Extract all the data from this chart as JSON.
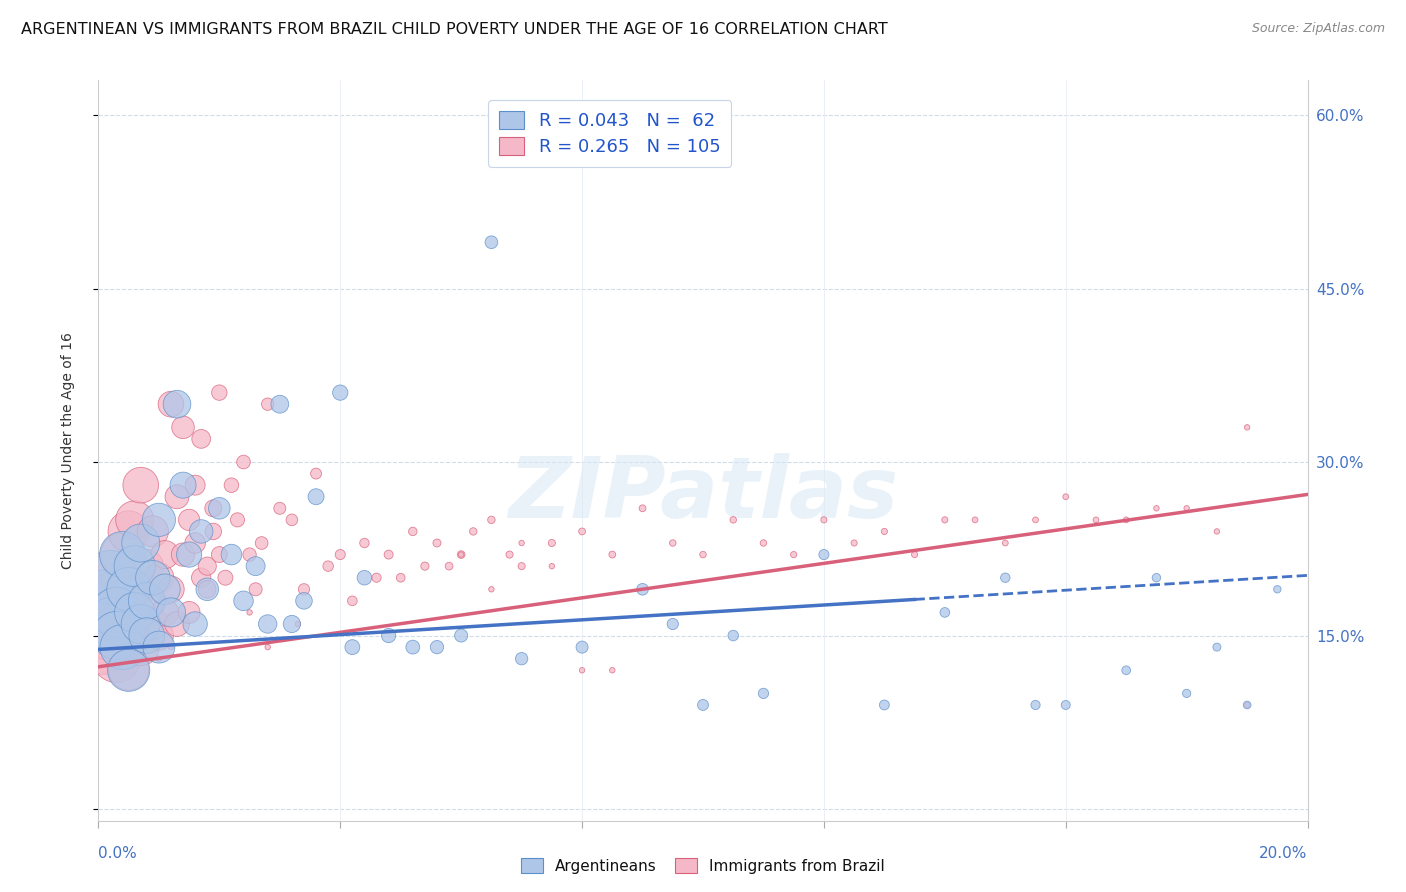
{
  "title": "ARGENTINEAN VS IMMIGRANTS FROM BRAZIL CHILD POVERTY UNDER THE AGE OF 16 CORRELATION CHART",
  "source": "Source: ZipAtlas.com",
  "ylabel": "Child Poverty Under the Age of 16",
  "yticks": [
    0.0,
    0.15,
    0.3,
    0.45,
    0.6
  ],
  "ytick_labels": [
    "",
    "15.0%",
    "30.0%",
    "45.0%",
    "60.0%"
  ],
  "xlim": [
    0.0,
    0.2
  ],
  "ylim": [
    -0.01,
    0.63
  ],
  "series1_name": "Argentineans",
  "series1_color": "#aec6e8",
  "series1_edge_color": "#5b8fc9",
  "series1_line_color": "#4472c4",
  "series1_R": 0.043,
  "series1_N": 62,
  "series2_name": "Immigrants from Brazil",
  "series2_color": "#f4b8c8",
  "series2_edge_color": "#d9607a",
  "series2_line_color": "#d9607a",
  "series2_R": 0.265,
  "series2_N": 105,
  "legend_text_color": "#2255cc",
  "axis_color": "#4472c4",
  "watermark": "ZIPatlas",
  "background_color": "#ffffff",
  "grid_color": "#d0dcea",
  "title_fontsize": 11.5,
  "axis_label_fontsize": 10,
  "tick_fontsize": 11,
  "arg_x": [
    0.001,
    0.002,
    0.002,
    0.003,
    0.003,
    0.004,
    0.004,
    0.005,
    0.005,
    0.006,
    0.006,
    0.007,
    0.007,
    0.008,
    0.008,
    0.009,
    0.01,
    0.01,
    0.011,
    0.012,
    0.013,
    0.014,
    0.015,
    0.016,
    0.017,
    0.018,
    0.02,
    0.022,
    0.024,
    0.026,
    0.028,
    0.03,
    0.032,
    0.034,
    0.036,
    0.04,
    0.042,
    0.044,
    0.048,
    0.052,
    0.056,
    0.06,
    0.065,
    0.07,
    0.08,
    0.09,
    0.095,
    0.1,
    0.105,
    0.11,
    0.12,
    0.13,
    0.14,
    0.15,
    0.155,
    0.16,
    0.17,
    0.175,
    0.18,
    0.185,
    0.19,
    0.195
  ],
  "arg_y": [
    0.18,
    0.2,
    0.16,
    0.17,
    0.15,
    0.22,
    0.14,
    0.19,
    0.12,
    0.21,
    0.17,
    0.16,
    0.23,
    0.18,
    0.15,
    0.2,
    0.25,
    0.14,
    0.19,
    0.17,
    0.35,
    0.28,
    0.22,
    0.16,
    0.24,
    0.19,
    0.26,
    0.22,
    0.18,
    0.21,
    0.16,
    0.35,
    0.16,
    0.18,
    0.27,
    0.36,
    0.14,
    0.2,
    0.15,
    0.14,
    0.14,
    0.15,
    0.49,
    0.13,
    0.14,
    0.19,
    0.16,
    0.09,
    0.15,
    0.1,
    0.22,
    0.09,
    0.17,
    0.2,
    0.09,
    0.09,
    0.12,
    0.2,
    0.1,
    0.14,
    0.09,
    0.19
  ],
  "arg_sizes": [
    900,
    700,
    650,
    600,
    550,
    500,
    480,
    450,
    420,
    400,
    380,
    360,
    340,
    320,
    300,
    280,
    260,
    240,
    220,
    200,
    180,
    160,
    150,
    140,
    130,
    120,
    110,
    100,
    90,
    85,
    80,
    75,
    70,
    65,
    60,
    55,
    52,
    50,
    48,
    45,
    42,
    40,
    38,
    36,
    34,
    32,
    30,
    28,
    26,
    25,
    24,
    23,
    22,
    21,
    20,
    19,
    18,
    17,
    16,
    15,
    14,
    13
  ],
  "bra_x": [
    0.001,
    0.001,
    0.002,
    0.002,
    0.003,
    0.003,
    0.004,
    0.004,
    0.005,
    0.005,
    0.005,
    0.006,
    0.006,
    0.007,
    0.007,
    0.008,
    0.008,
    0.009,
    0.009,
    0.01,
    0.01,
    0.011,
    0.011,
    0.012,
    0.012,
    0.013,
    0.013,
    0.014,
    0.014,
    0.015,
    0.015,
    0.016,
    0.016,
    0.017,
    0.017,
    0.018,
    0.018,
    0.019,
    0.019,
    0.02,
    0.02,
    0.021,
    0.022,
    0.023,
    0.024,
    0.025,
    0.026,
    0.027,
    0.028,
    0.03,
    0.032,
    0.034,
    0.036,
    0.038,
    0.04,
    0.042,
    0.044,
    0.046,
    0.048,
    0.05,
    0.052,
    0.054,
    0.056,
    0.058,
    0.06,
    0.062,
    0.065,
    0.068,
    0.07,
    0.075,
    0.08,
    0.085,
    0.09,
    0.095,
    0.1,
    0.105,
    0.11,
    0.115,
    0.12,
    0.125,
    0.13,
    0.135,
    0.14,
    0.145,
    0.15,
    0.155,
    0.16,
    0.165,
    0.17,
    0.175,
    0.18,
    0.185,
    0.19,
    0.06,
    0.065,
    0.07,
    0.075,
    0.08,
    0.085,
    0.19,
    0.01,
    0.012,
    0.025,
    0.028,
    0.033
  ],
  "bra_y": [
    0.14,
    0.18,
    0.15,
    0.2,
    0.13,
    0.17,
    0.16,
    0.22,
    0.15,
    0.24,
    0.12,
    0.19,
    0.25,
    0.14,
    0.28,
    0.18,
    0.21,
    0.16,
    0.24,
    0.2,
    0.15,
    0.22,
    0.17,
    0.19,
    0.35,
    0.16,
    0.27,
    0.22,
    0.33,
    0.17,
    0.25,
    0.23,
    0.28,
    0.2,
    0.32,
    0.21,
    0.19,
    0.26,
    0.24,
    0.22,
    0.36,
    0.2,
    0.28,
    0.25,
    0.3,
    0.22,
    0.19,
    0.23,
    0.35,
    0.26,
    0.25,
    0.19,
    0.29,
    0.21,
    0.22,
    0.18,
    0.23,
    0.2,
    0.22,
    0.2,
    0.24,
    0.21,
    0.23,
    0.21,
    0.22,
    0.24,
    0.25,
    0.22,
    0.21,
    0.23,
    0.24,
    0.22,
    0.26,
    0.23,
    0.22,
    0.25,
    0.23,
    0.22,
    0.25,
    0.23,
    0.24,
    0.22,
    0.25,
    0.25,
    0.23,
    0.25,
    0.27,
    0.25,
    0.25,
    0.26,
    0.26,
    0.24,
    0.33,
    0.22,
    0.19,
    0.23,
    0.21,
    0.12,
    0.12,
    0.09,
    0.13,
    0.14,
    0.17,
    0.14,
    0.16
  ],
  "bra_sizes": [
    700,
    650,
    600,
    570,
    540,
    500,
    480,
    450,
    430,
    400,
    380,
    360,
    340,
    320,
    300,
    280,
    260,
    240,
    230,
    210,
    200,
    185,
    175,
    165,
    155,
    145,
    135,
    128,
    120,
    113,
    106,
    100,
    94,
    88,
    83,
    78,
    73,
    68,
    64,
    60,
    56,
    53,
    50,
    47,
    44,
    42,
    40,
    38,
    36,
    34,
    32,
    30,
    28,
    26,
    24,
    22,
    21,
    20,
    19,
    18,
    17,
    16,
    15,
    14,
    14,
    13,
    13,
    12,
    12,
    12,
    11,
    11,
    11,
    10,
    10,
    10,
    10,
    9,
    9,
    9,
    9,
    9,
    9,
    8,
    8,
    8,
    8,
    8,
    8,
    7,
    7,
    7,
    7,
    7,
    7,
    7,
    7,
    7,
    7,
    7,
    7,
    7,
    7,
    7,
    7
  ],
  "trend_arg_x0": 0.0,
  "trend_arg_y0": 0.138,
  "trend_arg_x1": 0.2,
  "trend_arg_y1": 0.202,
  "trend_bra_x0": 0.0,
  "trend_bra_y0": 0.123,
  "trend_bra_x1": 0.2,
  "trend_bra_y1": 0.272
}
